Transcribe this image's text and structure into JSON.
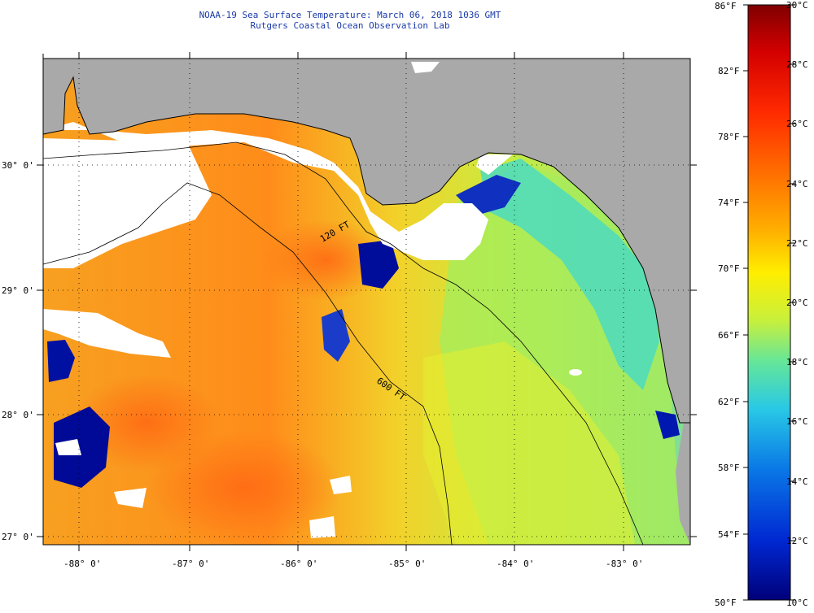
{
  "header": {
    "title_line1": "NOAA-19 Sea Surface Temperature:  March 06, 2018 1036 GMT",
    "title_line2": "Rutgers Coastal Ocean Observation Lab"
  },
  "map": {
    "lat_labels": [
      "30° 0'",
      "29° 0'",
      "28° 0'",
      "27° 0'"
    ],
    "lon_labels": [
      "-88° 0'",
      "-87° 0'",
      "-86° 0'",
      "-85° 0'",
      "-84° 0'",
      "-83° 0'"
    ],
    "contour_labels": [
      "120 FT",
      "600 FT"
    ],
    "colors": {
      "land": "#a9a9a9",
      "cloud": "#ffffff",
      "warm_water": "#ff8c1a",
      "cool_water": "#7fe0a0"
    }
  },
  "colorbar": {
    "fahrenheit_labels": [
      "86°F",
      "82°F",
      "78°F",
      "74°F",
      "70°F",
      "66°F",
      "62°F",
      "58°F",
      "54°F",
      "50°F"
    ],
    "celsius_labels": [
      "30°C",
      "28°C",
      "26°C",
      "24°C",
      "22°C",
      "20°C",
      "18°C",
      "16°C",
      "14°C",
      "12°C",
      "10°C"
    ],
    "gradient_colors": [
      "#800000",
      "#d40000",
      "#ff2a00",
      "#ff7a00",
      "#ffb000",
      "#ffee00",
      "#c8f03c",
      "#64e69a",
      "#28c8e6",
      "#0a78e6",
      "#0028d2",
      "#00007a"
    ]
  }
}
